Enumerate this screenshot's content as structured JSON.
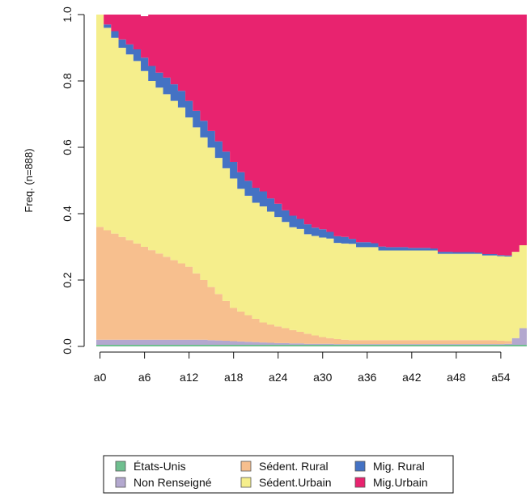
{
  "chart_data": {
    "type": "area",
    "stacked": true,
    "ylabel": "Freq. (n=888)",
    "xlabel": "",
    "ylim": [
      0,
      1
    ],
    "yticks": [
      "0.0",
      "0.2",
      "0.4",
      "0.6",
      "0.8",
      "1.0"
    ],
    "xticks": [
      "a0",
      "a6",
      "a12",
      "a18",
      "a24",
      "a30",
      "a36",
      "a42",
      "a48",
      "a54"
    ],
    "x": [
      0,
      1,
      2,
      3,
      4,
      5,
      6,
      7,
      8,
      9,
      10,
      11,
      12,
      13,
      14,
      15,
      16,
      17,
      18,
      19,
      20,
      21,
      22,
      23,
      24,
      25,
      26,
      27,
      28,
      29,
      30,
      31,
      32,
      33,
      34,
      35,
      36,
      37,
      38,
      39,
      40,
      41,
      42,
      43,
      44,
      45,
      46,
      47,
      48,
      49,
      50,
      51,
      52,
      53,
      54,
      55,
      56,
      57
    ],
    "series": [
      {
        "name": "États-Unis",
        "color": "#6fbf8f",
        "values": [
          0.005,
          0.005,
          0.005,
          0.005,
          0.005,
          0.005,
          0.005,
          0.005,
          0.005,
          0.005,
          0.005,
          0.005,
          0.005,
          0.005,
          0.005,
          0.005,
          0.005,
          0.005,
          0.005,
          0.005,
          0.005,
          0.005,
          0.005,
          0.005,
          0.005,
          0.005,
          0.005,
          0.005,
          0.005,
          0.005,
          0.005,
          0.005,
          0.005,
          0.005,
          0.005,
          0.005,
          0.005,
          0.005,
          0.005,
          0.005,
          0.005,
          0.005,
          0.005,
          0.005,
          0.005,
          0.005,
          0.005,
          0.005,
          0.005,
          0.005,
          0.005,
          0.005,
          0.005,
          0.005,
          0.005,
          0.005,
          0.005,
          0.005
        ]
      },
      {
        "name": "Non Renseigné",
        "color": "#b3a8cf",
        "values": [
          0.015,
          0.015,
          0.015,
          0.015,
          0.015,
          0.015,
          0.015,
          0.015,
          0.015,
          0.015,
          0.015,
          0.015,
          0.015,
          0.015,
          0.015,
          0.014,
          0.013,
          0.012,
          0.011,
          0.01,
          0.009,
          0.008,
          0.007,
          0.006,
          0.005,
          0.005,
          0.004,
          0.004,
          0.003,
          0.003,
          0.003,
          0.003,
          0.002,
          0.002,
          0.002,
          0.002,
          0.002,
          0.002,
          0.002,
          0.002,
          0.002,
          0.002,
          0.002,
          0.002,
          0.002,
          0.002,
          0.002,
          0.002,
          0.002,
          0.002,
          0.002,
          0.002,
          0.002,
          0.002,
          0.002,
          0.003,
          0.02,
          0.05
        ]
      },
      {
        "name": "Sédent. Rural",
        "color": "#f7bf8e",
        "values": [
          0.34,
          0.33,
          0.32,
          0.31,
          0.3,
          0.29,
          0.28,
          0.27,
          0.26,
          0.25,
          0.24,
          0.23,
          0.22,
          0.2,
          0.18,
          0.16,
          0.14,
          0.12,
          0.1,
          0.09,
          0.08,
          0.07,
          0.06,
          0.055,
          0.05,
          0.045,
          0.04,
          0.035,
          0.03,
          0.025,
          0.02,
          0.017,
          0.015,
          0.013,
          0.012,
          0.012,
          0.012,
          0.012,
          0.012,
          0.012,
          0.012,
          0.012,
          0.012,
          0.012,
          0.012,
          0.012,
          0.012,
          0.012,
          0.012,
          0.012,
          0.012,
          0.012,
          0.012,
          0.012,
          0.01,
          0.008,
          0.0,
          0.0
        ]
      },
      {
        "name": "Sédent.Urbain",
        "color": "#f5ee8c",
        "values": [
          0.64,
          0.61,
          0.59,
          0.57,
          0.56,
          0.55,
          0.53,
          0.51,
          0.5,
          0.49,
          0.48,
          0.47,
          0.45,
          0.44,
          0.43,
          0.42,
          0.41,
          0.4,
          0.39,
          0.37,
          0.36,
          0.35,
          0.35,
          0.34,
          0.33,
          0.32,
          0.31,
          0.31,
          0.3,
          0.3,
          0.3,
          0.3,
          0.29,
          0.29,
          0.29,
          0.28,
          0.28,
          0.28,
          0.27,
          0.27,
          0.27,
          0.27,
          0.27,
          0.27,
          0.27,
          0.27,
          0.26,
          0.26,
          0.26,
          0.26,
          0.26,
          0.26,
          0.255,
          0.255,
          0.255,
          0.255,
          0.26,
          0.25
        ]
      },
      {
        "name": "Mig. Rural",
        "color": "#4472c4",
        "values": [
          0.0,
          0.01,
          0.02,
          0.025,
          0.03,
          0.035,
          0.04,
          0.045,
          0.045,
          0.05,
          0.05,
          0.05,
          0.05,
          0.05,
          0.05,
          0.05,
          0.05,
          0.05,
          0.05,
          0.05,
          0.045,
          0.045,
          0.045,
          0.04,
          0.04,
          0.035,
          0.035,
          0.03,
          0.03,
          0.025,
          0.025,
          0.02,
          0.02,
          0.02,
          0.015,
          0.015,
          0.015,
          0.012,
          0.012,
          0.01,
          0.01,
          0.01,
          0.008,
          0.008,
          0.008,
          0.006,
          0.006,
          0.006,
          0.005,
          0.005,
          0.005,
          0.004,
          0.004,
          0.004,
          0.003,
          0.003,
          0.0,
          0.0
        ]
      },
      {
        "name": "Mig.Urbain",
        "color": "#e8236f",
        "values": [
          0.0,
          0.03,
          0.05,
          0.075,
          0.09,
          0.105,
          0.125,
          0.155,
          0.175,
          0.19,
          0.21,
          0.23,
          0.26,
          0.29,
          0.32,
          0.351,
          0.382,
          0.413,
          0.444,
          0.475,
          0.501,
          0.522,
          0.533,
          0.554,
          0.57,
          0.59,
          0.611,
          0.626,
          0.642,
          0.657,
          0.647,
          0.655,
          0.673,
          0.675,
          0.681,
          0.688,
          0.691,
          0.694,
          0.704,
          0.706,
          0.706,
          0.706,
          0.708,
          0.708,
          0.708,
          0.71,
          0.72,
          0.72,
          0.721,
          0.721,
          0.721,
          0.722,
          0.727,
          0.727,
          0.73,
          0.729,
          0.715,
          0.695
        ]
      }
    ],
    "legend": {
      "position": "bottom",
      "entries": [
        {
          "label": "États-Unis",
          "color": "#6fbf8f"
        },
        {
          "label": "Sédent. Rural",
          "color": "#f7bf8e"
        },
        {
          "label": "Mig. Rural",
          "color": "#4472c4"
        },
        {
          "label": "Non Renseigné",
          "color": "#b3a8cf"
        },
        {
          "label": "Sédent.Urbain",
          "color": "#f5ee8c"
        },
        {
          "label": "Mig.Urbain",
          "color": "#e8236f"
        }
      ]
    },
    "grid": false
  }
}
